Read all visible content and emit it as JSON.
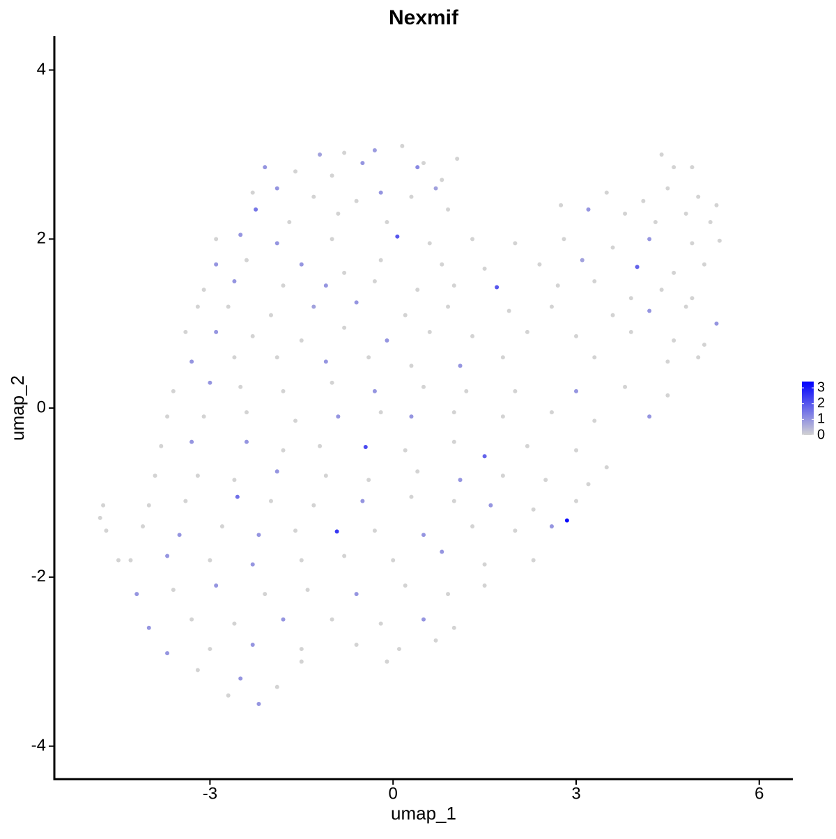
{
  "chart_data": {
    "type": "scatter",
    "title": "Nexmif",
    "x_label": "umap_1",
    "y_label": "umap_2",
    "xlim": [
      -5.55,
      6.55
    ],
    "xticks": [
      -3,
      0,
      3,
      6
    ],
    "ylim": [
      -4.39,
      4.4
    ],
    "yticks": [
      -4,
      -2,
      0,
      2,
      4
    ],
    "colorbar": {
      "lim": [
        0,
        3.4
      ],
      "ticks": [
        0,
        1,
        2,
        3
      ],
      "colors": [
        "#d3d3d3",
        "#0000ff"
      ]
    },
    "x": [
      -4.8,
      -4.75,
      -4.7,
      -4.5,
      -1.2,
      -0.8,
      -0.3,
      0.15,
      0.5,
      1.05,
      -2.1,
      -1.6,
      -1.0,
      -0.5,
      0.4,
      0.8,
      4.4,
      4.6,
      4.9,
      -2.3,
      -1.9,
      -1.3,
      -0.6,
      -0.2,
      0.3,
      0.7,
      3.5,
      4.1,
      4.5,
      5.0,
      5.3,
      -2.25,
      -1.7,
      -0.9,
      -0.1,
      0.9,
      2.75,
      3.2,
      3.8,
      4.3,
      4.8,
      5.2,
      -2.9,
      -2.5,
      -1.9,
      -1.0,
      0.07,
      0.6,
      1.3,
      2.0,
      2.8,
      3.6,
      4.2,
      4.9,
      5.35,
      -2.9,
      -2.4,
      -1.5,
      -0.8,
      -0.2,
      0.8,
      1.5,
      2.4,
      3.1,
      4.0,
      4.6,
      5.1,
      -3.1,
      -2.6,
      -1.8,
      -1.1,
      -0.3,
      0.4,
      1.0,
      1.7,
      2.7,
      3.3,
      3.9,
      4.4,
      4.9,
      -3.2,
      -2.7,
      -2.0,
      -1.3,
      -0.6,
      0.2,
      0.9,
      1.9,
      2.6,
      3.6,
      4.2,
      4.8,
      5.3,
      -3.4,
      -2.9,
      -2.3,
      -1.5,
      -0.8,
      -0.1,
      0.6,
      1.3,
      2.2,
      3.0,
      3.9,
      4.6,
      5.1,
      -3.3,
      -2.6,
      -1.9,
      -1.1,
      -0.4,
      0.3,
      1.1,
      1.8,
      3.3,
      4.5,
      5.0,
      -3.6,
      -3.0,
      -2.5,
      -1.8,
      -1.0,
      -0.3,
      0.5,
      1.2,
      2.0,
      3.0,
      3.8,
      4.5,
      -3.7,
      -3.1,
      -2.4,
      -1.6,
      -0.9,
      -0.2,
      0.3,
      1.0,
      1.8,
      2.6,
      3.3,
      4.2,
      -3.8,
      -3.3,
      -2.4,
      -1.8,
      -1.2,
      -0.45,
      0.2,
      1.0,
      1.5,
      2.2,
      3.0,
      3.5,
      -3.9,
      -3.2,
      -2.6,
      -1.9,
      -1.1,
      -0.4,
      0.4,
      1.1,
      1.8,
      2.5,
      3.2,
      -4.0,
      -3.4,
      -2.55,
      -2.0,
      -1.3,
      -0.5,
      0.3,
      1.0,
      1.6,
      2.3,
      3.0,
      -4.1,
      -3.5,
      -2.8,
      -2.2,
      -1.6,
      -0.92,
      -0.3,
      0.5,
      1.3,
      2.0,
      2.85,
      2.6,
      -4.3,
      -3.7,
      -3.0,
      -2.3,
      -1.5,
      -0.8,
      0.0,
      0.8,
      1.5,
      2.3,
      -4.2,
      -3.6,
      -2.9,
      -2.1,
      -1.4,
      -0.6,
      0.2,
      0.9,
      1.5,
      -4.0,
      -3.3,
      -2.6,
      -1.8,
      -1.0,
      -0.2,
      0.5,
      1.0,
      -3.7,
      -3.0,
      -2.3,
      -1.5,
      -0.6,
      0.1,
      0.7,
      -3.2,
      -2.5,
      -1.5,
      -0.1,
      -2.2,
      -1.9,
      -2.7
    ],
    "y": [
      -1.3,
      -1.15,
      -1.45,
      -1.8,
      3.0,
      3.02,
      3.05,
      3.1,
      2.9,
      2.95,
      2.85,
      2.8,
      2.75,
      2.9,
      2.85,
      2.7,
      3.0,
      2.85,
      2.85,
      2.55,
      2.6,
      2.5,
      2.45,
      2.55,
      2.5,
      2.6,
      2.55,
      2.45,
      2.6,
      2.5,
      2.4,
      2.35,
      2.2,
      2.3,
      2.2,
      2.35,
      2.4,
      2.35,
      2.3,
      2.2,
      2.3,
      2.2,
      2.0,
      2.05,
      1.95,
      2.0,
      2.03,
      1.95,
      2.0,
      1.95,
      2.0,
      1.9,
      2.0,
      1.95,
      1.98,
      1.7,
      1.75,
      1.7,
      1.6,
      1.75,
      1.7,
      1.65,
      1.7,
      1.75,
      1.67,
      1.6,
      1.7,
      1.4,
      1.5,
      1.45,
      1.45,
      1.5,
      1.4,
      1.45,
      1.43,
      1.45,
      1.5,
      1.3,
      1.4,
      1.3,
      1.2,
      1.2,
      1.1,
      1.2,
      1.25,
      1.1,
      1.2,
      1.15,
      1.2,
      1.1,
      1.15,
      1.2,
      1.0,
      0.9,
      0.9,
      0.85,
      0.8,
      0.95,
      0.8,
      0.9,
      0.85,
      0.9,
      0.85,
      0.9,
      0.8,
      0.75,
      0.55,
      0.6,
      0.6,
      0.55,
      0.6,
      0.5,
      0.5,
      0.6,
      0.6,
      0.55,
      0.6,
      0.2,
      0.3,
      0.25,
      0.2,
      0.3,
      0.2,
      0.25,
      0.2,
      0.2,
      0.2,
      0.25,
      0.15,
      -0.1,
      -0.1,
      -0.05,
      -0.15,
      -0.1,
      -0.05,
      -0.1,
      -0.05,
      -0.1,
      -0.05,
      -0.15,
      -0.1,
      -0.45,
      -0.4,
      -0.4,
      -0.5,
      -0.45,
      -0.46,
      -0.5,
      -0.4,
      -0.57,
      -0.45,
      -0.5,
      -0.7,
      -0.8,
      -0.8,
      -0.85,
      -0.75,
      -0.8,
      -0.85,
      -0.75,
      -0.85,
      -0.8,
      -0.85,
      -0.9,
      -1.15,
      -1.1,
      -1.05,
      -1.1,
      -1.15,
      -1.1,
      -1.05,
      -1.1,
      -1.15,
      -1.2,
      -1.1,
      -1.4,
      -1.5,
      -1.4,
      -1.5,
      -1.45,
      -1.46,
      -1.45,
      -1.5,
      -1.4,
      -1.45,
      -1.33,
      -1.4,
      -1.8,
      -1.75,
      -1.8,
      -1.85,
      -1.8,
      -1.75,
      -1.8,
      -1.7,
      -1.85,
      -1.8,
      -2.2,
      -2.15,
      -2.1,
      -2.2,
      -2.15,
      -2.2,
      -2.1,
      -2.2,
      -2.1,
      -2.6,
      -2.5,
      -2.55,
      -2.5,
      -2.5,
      -2.55,
      -2.5,
      -2.6,
      -2.9,
      -2.85,
      -2.8,
      -2.85,
      -2.8,
      -2.85,
      -2.75,
      -3.1,
      -3.2,
      -3.0,
      -3.0,
      -3.5,
      -3.3,
      -3.4
    ],
    "values": [
      0,
      0,
      0,
      0,
      0.8,
      0,
      0.9,
      0,
      0,
      0,
      1,
      0,
      0,
      1,
      1.2,
      0,
      0,
      0,
      0,
      0,
      1,
      0,
      0,
      1,
      0,
      0.8,
      0,
      0,
      0,
      0,
      0,
      1.5,
      0,
      0,
      0,
      0,
      0,
      1,
      0,
      0,
      0,
      0,
      0,
      1,
      1,
      0,
      2,
      0,
      0,
      0,
      0,
      0,
      1,
      0,
      0,
      1,
      0,
      1,
      0,
      0,
      0,
      0,
      0,
      0.8,
      1.8,
      0,
      0,
      0,
      1,
      0,
      1,
      0,
      0,
      0,
      2,
      0,
      0,
      0,
      0,
      0,
      0,
      0,
      0,
      0.8,
      1,
      0,
      0,
      0,
      0,
      0,
      1,
      0,
      1,
      0,
      1,
      0,
      0,
      0,
      1,
      0,
      0,
      0,
      0,
      0,
      0,
      0,
      1,
      0,
      0,
      1,
      0,
      0,
      1,
      0,
      0,
      0,
      0,
      0,
      1,
      0,
      0,
      0,
      1,
      0,
      0,
      0,
      1,
      0,
      0,
      0,
      0,
      0,
      0,
      1,
      0,
      1,
      0,
      0,
      0,
      0,
      1,
      0,
      1,
      1,
      0,
      0,
      2.2,
      0,
      0,
      1.8,
      0,
      0,
      0,
      0,
      0,
      0,
      1,
      0,
      0,
      0,
      1,
      0,
      0,
      0,
      0,
      0,
      1.6,
      0,
      0,
      1,
      0,
      0,
      1,
      0,
      0,
      0,
      1,
      0,
      1,
      0,
      2.5,
      0,
      1,
      0,
      0,
      3.2,
      1,
      0,
      1,
      0,
      1,
      0,
      0,
      0,
      1,
      0,
      0,
      1,
      0,
      1,
      0,
      0,
      1,
      0,
      0,
      0,
      1,
      0,
      0,
      1,
      0,
      0,
      1,
      0,
      1,
      0,
      1,
      0,
      0,
      0,
      0,
      0,
      1,
      0,
      0,
      1,
      0,
      0
    ]
  }
}
